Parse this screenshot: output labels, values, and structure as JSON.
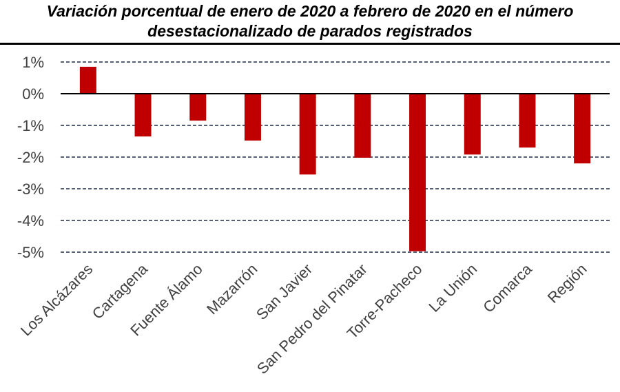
{
  "chart_data": {
    "type": "bar",
    "title_line1": "Variación porcentual de enero de 2020 a febrero de 2020 en el número",
    "title_line2": "desestacionalizado de parados registrados",
    "categories": [
      "Los Alcázares",
      "Cartagena",
      "Fuente Álamo",
      "Mazarrón",
      "San Javier",
      "San Pedro del Pinatar",
      "Torre-Pacheco",
      "La Unión",
      "Comarca",
      "Región"
    ],
    "values": [
      0.85,
      -1.35,
      -0.85,
      -1.48,
      -2.55,
      -2.02,
      -4.97,
      -1.92,
      -1.7,
      -2.2
    ],
    "y_ticks": [
      1,
      0,
      -1,
      -2,
      -3,
      -4,
      -5
    ],
    "y_tick_labels": [
      "1%",
      "0%",
      "-1%",
      "-2%",
      "-3%",
      "-4%",
      "-5%"
    ],
    "ylim": [
      -5,
      1
    ],
    "xlabel": "",
    "ylabel": "",
    "grid": true,
    "bar_color": "#C00000",
    "grid_color": "#1F2A44",
    "zero_line_color": "#000000"
  }
}
